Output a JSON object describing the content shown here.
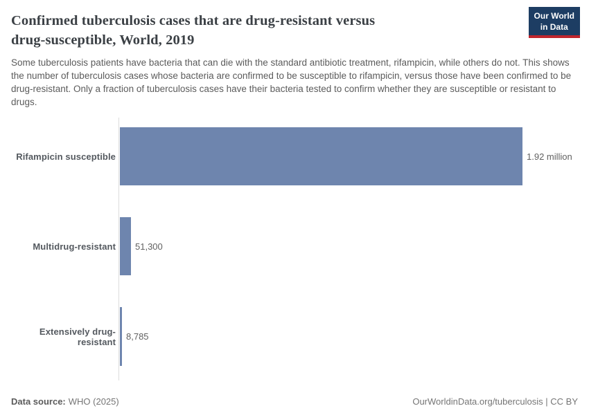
{
  "header": {
    "title_lines": [
      "Confirmed tuberculosis cases that are drug-resistant versus",
      "drug-susceptible, World, 2019"
    ],
    "logo": {
      "line1": "Our World",
      "line2": "in Data"
    }
  },
  "subtitle": "Some tuberculosis patients have bacteria that can die with the standard antibiotic treatment, rifampicin, while others do not. This shows the number of tuberculosis cases whose bacteria are confirmed to be susceptible to rifampicin, versus those have been confirmed to be drug-resistant. Only a fraction of tuberculosis cases have their bacteria tested to confirm whether they are susceptible or resistant to drugs.",
  "chart_data": {
    "type": "bar",
    "orientation": "horizontal",
    "title": "Confirmed tuberculosis cases that are drug-resistant versus drug-susceptible, World, 2019",
    "categories": [
      "Rifampicin susceptible",
      "Multidrug-resistant",
      "Extensively drug-resistant"
    ],
    "values": [
      1920000,
      51300,
      8785
    ],
    "value_labels": [
      "1.92 million",
      "51,300",
      "8,785"
    ],
    "xlim": [
      0,
      1920000
    ],
    "grid": false,
    "legend": "none",
    "bar_color": "#6e85ae"
  },
  "footer": {
    "source_label": "Data source:",
    "source_value": "WHO (2025)",
    "link_text": "OurWorldinData.org/tuberculosis | CC BY"
  },
  "colors": {
    "bar": "#6e85ae",
    "logo_bg": "#1d3d63",
    "logo_accent": "#c0262d",
    "axis": "#dcdcdc",
    "title_text": "#3b4045",
    "body_text": "#5b5b5b"
  }
}
